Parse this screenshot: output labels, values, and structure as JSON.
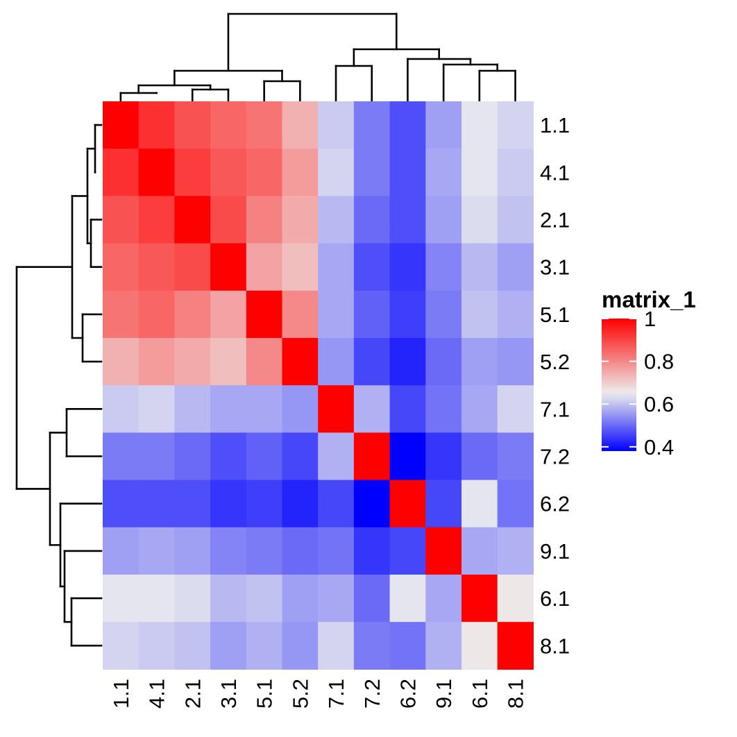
{
  "chart_data": {
    "type": "heatmap",
    "rows": [
      "1.1",
      "4.1",
      "2.1",
      "3.1",
      "5.1",
      "5.2",
      "7.1",
      "7.2",
      "6.2",
      "9.1",
      "6.1",
      "8.1"
    ],
    "cols": [
      "1.1",
      "4.1",
      "2.1",
      "3.1",
      "5.1",
      "5.2",
      "7.1",
      "7.2",
      "6.2",
      "9.1",
      "6.1",
      "8.1"
    ],
    "values": [
      [
        1.0,
        0.93,
        0.88,
        0.85,
        0.83,
        0.74,
        0.61,
        0.52,
        0.47,
        0.56,
        0.64,
        0.62
      ],
      [
        0.93,
        1.0,
        0.91,
        0.87,
        0.85,
        0.77,
        0.62,
        0.52,
        0.47,
        0.57,
        0.64,
        0.61
      ],
      [
        0.88,
        0.91,
        1.0,
        0.89,
        0.81,
        0.75,
        0.59,
        0.5,
        0.47,
        0.56,
        0.63,
        0.6
      ],
      [
        0.85,
        0.87,
        0.89,
        1.0,
        0.76,
        0.72,
        0.57,
        0.47,
        0.44,
        0.53,
        0.59,
        0.56
      ],
      [
        0.83,
        0.85,
        0.81,
        0.76,
        1.0,
        0.8,
        0.57,
        0.49,
        0.45,
        0.52,
        0.6,
        0.58
      ],
      [
        0.74,
        0.77,
        0.75,
        0.72,
        0.8,
        1.0,
        0.55,
        0.46,
        0.42,
        0.5,
        0.56,
        0.55
      ],
      [
        0.61,
        0.62,
        0.59,
        0.57,
        0.57,
        0.55,
        1.0,
        0.58,
        0.46,
        0.51,
        0.57,
        0.62
      ],
      [
        0.52,
        0.52,
        0.5,
        0.47,
        0.49,
        0.46,
        0.58,
        1.0,
        0.38,
        0.44,
        0.5,
        0.52
      ],
      [
        0.47,
        0.47,
        0.47,
        0.44,
        0.45,
        0.42,
        0.46,
        0.38,
        1.0,
        0.46,
        0.64,
        0.51
      ],
      [
        0.56,
        0.57,
        0.56,
        0.53,
        0.52,
        0.5,
        0.51,
        0.44,
        0.46,
        1.0,
        0.57,
        0.58
      ],
      [
        0.64,
        0.64,
        0.63,
        0.59,
        0.6,
        0.56,
        0.57,
        0.5,
        0.64,
        0.57,
        1.0,
        0.66
      ],
      [
        0.62,
        0.61,
        0.6,
        0.56,
        0.58,
        0.55,
        0.62,
        0.52,
        0.51,
        0.58,
        0.66,
        1.0
      ]
    ],
    "color_scale": {
      "stops": [
        {
          "value": 0.38,
          "color": "#0000ff"
        },
        {
          "value": 0.65,
          "color": "#eeeeee"
        },
        {
          "value": 1.0,
          "color": "#ff0000"
        }
      ]
    },
    "legend": {
      "title": "matrix_1",
      "ticks": [
        {
          "value": 1,
          "label": "1"
        },
        {
          "value": 0.8,
          "label": "0.8"
        },
        {
          "value": 0.6,
          "label": "0.6"
        },
        {
          "value": 0.4,
          "label": "0.4"
        }
      ],
      "placement": "right"
    },
    "column_dendrogram": true,
    "row_dendrogram": true
  }
}
